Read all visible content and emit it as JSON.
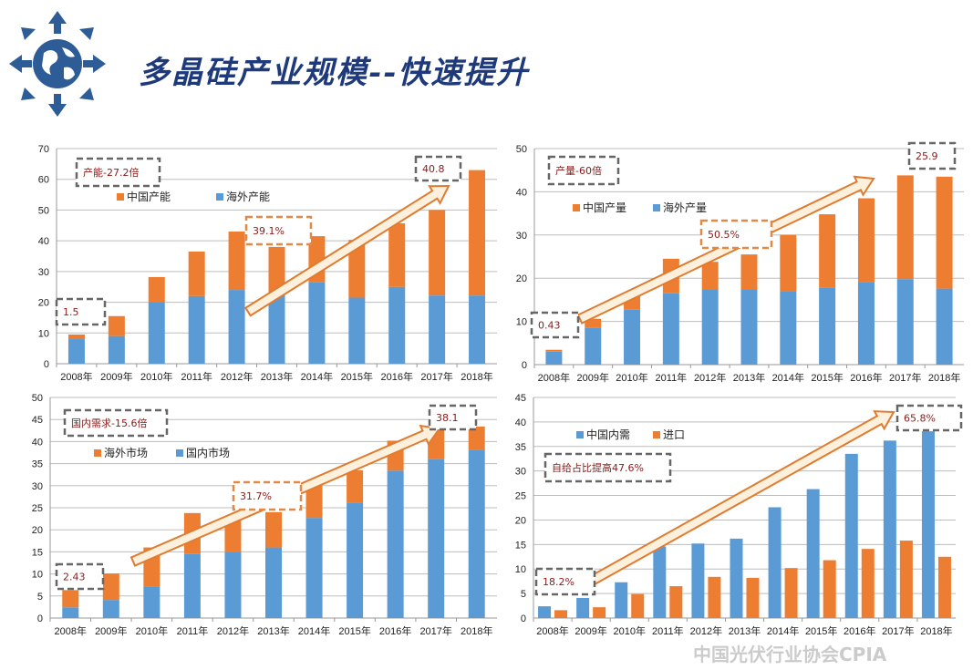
{
  "page": {
    "title": "多晶硅产业规模--快速提升",
    "watermark": "中国光伏行业协会CPIA",
    "logo_icon": "globe-with-arrows-icon",
    "colors": {
      "blue": "#5b9bd5",
      "orange": "#ed7d31",
      "title": "#1f3a7a",
      "annotation_text": "#8b1a1a"
    }
  },
  "chart_data": [
    {
      "type": "bar",
      "stacked": true,
      "categories": [
        "2008年",
        "2009年",
        "2010年",
        "2011年",
        "2012年",
        "2013年",
        "2014年",
        "2015年",
        "2016年",
        "2017年",
        "2018年"
      ],
      "ylim": [
        0,
        70
      ],
      "yticks": [
        "0",
        "10",
        "20",
        "30",
        "40",
        "50",
        "60",
        "70"
      ],
      "grid": true,
      "legend_placement": "top-left",
      "series": [
        {
          "name": "海外产能",
          "color": "#5b9bd5",
          "values": [
            8,
            9,
            20,
            22,
            24,
            23,
            26.5,
            21.5,
            25,
            22.2,
            22.2
          ]
        },
        {
          "name": "中国产能",
          "color": "#ed7d31",
          "values": [
            1.5,
            6.5,
            8.2,
            14.5,
            19,
            15,
            15,
            18.8,
            20.7,
            27.8,
            40.8
          ]
        }
      ],
      "legend_order": [
        1,
        0
      ],
      "annotations": [
        {
          "text": "产能-27.2倍"
        },
        {
          "text": "1.5"
        },
        {
          "text": "39.1%"
        },
        {
          "text": "40.8"
        }
      ]
    },
    {
      "type": "bar",
      "stacked": true,
      "categories": [
        "2008年",
        "2009年",
        "2010年",
        "2011年",
        "2012年",
        "2013年",
        "2014年",
        "2015年",
        "2016年",
        "2017年",
        "2018年"
      ],
      "ylim": [
        0,
        50
      ],
      "yticks": [
        "0",
        "10",
        "20",
        "30",
        "40",
        "50"
      ],
      "grid": true,
      "legend_placement": "top-left",
      "series": [
        {
          "name": "海外产量",
          "color": "#5b9bd5",
          "values": [
            3.0,
            8.5,
            12.7,
            16.5,
            17.4,
            17.4,
            17,
            17.8,
            19,
            19.8,
            17.6
          ]
        },
        {
          "name": "中国产量",
          "color": "#ed7d31",
          "values": [
            0.43,
            2.1,
            3.3,
            8,
            6.4,
            8.1,
            13,
            17,
            19.5,
            24,
            25.9
          ]
        }
      ],
      "legend_order": [
        1,
        0
      ],
      "annotations": [
        {
          "text": "产量-60倍"
        },
        {
          "text": "0.43"
        },
        {
          "text": "50.5%"
        },
        {
          "text": "25.9"
        }
      ]
    },
    {
      "type": "bar",
      "stacked": true,
      "categories": [
        "2008年",
        "2009年",
        "2010年",
        "2011年",
        "2012年",
        "2013年",
        "2014年",
        "2015年",
        "2016年",
        "2017年",
        "2018年"
      ],
      "ylim": [
        0,
        50
      ],
      "yticks": [
        "0",
        "5",
        "10",
        "15",
        "20",
        "25",
        "30",
        "35",
        "40",
        "45",
        "50"
      ],
      "grid": true,
      "legend_placement": "top-left",
      "series": [
        {
          "name": "国内市场",
          "color": "#5b9bd5",
          "values": [
            2.43,
            4.1,
            7.2,
            14.5,
            15,
            16,
            22.7,
            26.2,
            33.4,
            36.1,
            38.1
          ]
        },
        {
          "name": "海外市场",
          "color": "#ed7d31",
          "values": [
            3.9,
            6,
            8.8,
            9.3,
            7,
            8,
            7.3,
            7.3,
            6.8,
            6.7,
            5.3
          ]
        }
      ],
      "legend_order": [
        1,
        0
      ],
      "annotations": [
        {
          "text": "国内需求-15.6倍"
        },
        {
          "text": "2.43"
        },
        {
          "text": "31.7%"
        },
        {
          "text": "38.1"
        }
      ]
    },
    {
      "type": "bar",
      "stacked": false,
      "categories": [
        "2008年",
        "2009年",
        "2010年",
        "2011年",
        "2012年",
        "2013年",
        "2014年",
        "2015年",
        "2016年",
        "2017年",
        "2018年"
      ],
      "ylim": [
        0,
        45
      ],
      "yticks": [
        "0",
        "5",
        "10",
        "15",
        "20",
        "25",
        "30",
        "35",
        "40",
        "45"
      ],
      "grid": true,
      "legend_placement": "top-left",
      "series": [
        {
          "name": "中国内需",
          "color": "#5b9bd5",
          "values": [
            2.4,
            4.1,
            7.3,
            14.6,
            15.2,
            16.2,
            22.6,
            26.3,
            33.5,
            36.2,
            38.1
          ]
        },
        {
          "name": "进口",
          "color": "#ed7d31",
          "values": [
            1.6,
            2.2,
            4.9,
            6.5,
            8.4,
            8.2,
            10.2,
            11.8,
            14.1,
            15.8,
            12.5
          ]
        }
      ],
      "legend_order": [
        0,
        1
      ],
      "annotations": [
        {
          "text": "自给占比提高47.6%"
        },
        {
          "text": "18.2%"
        },
        {
          "text": "65.8%"
        }
      ]
    }
  ]
}
